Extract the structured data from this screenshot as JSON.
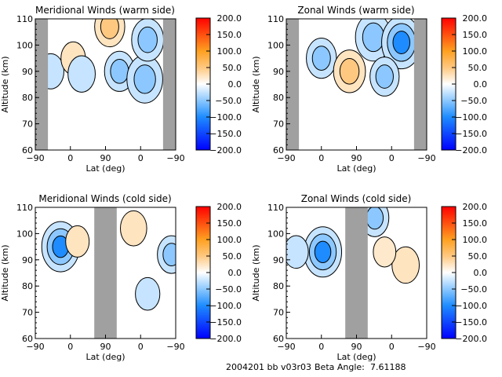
{
  "footer": {
    "run_id": "2004201 bb v03r03",
    "beta_angle_label": "Beta Angle:",
    "beta_angle_value": "7.61188"
  },
  "colorbar": {
    "ticks": [
      "200.0",
      "150.0",
      "100.0",
      "50.0",
      "0.0",
      "-50.0",
      "-100.0",
      "-150.0",
      "-200.0"
    ],
    "range": [
      -200,
      200
    ],
    "stops": [
      {
        "value": -200,
        "color": "#0000ff"
      },
      {
        "value": -100,
        "color": "#1e8cff"
      },
      {
        "value": -50,
        "color": "#8cc8ff"
      },
      {
        "value": 0,
        "color": "#ffffff"
      },
      {
        "value": 50,
        "color": "#ffc880"
      },
      {
        "value": 100,
        "color": "#ffa020"
      },
      {
        "value": 200,
        "color": "#ff0000"
      }
    ]
  },
  "chart_data": [
    {
      "type": "heatmap",
      "title": "Meridional Winds (warm side)",
      "xlabel": "Lat (deg)",
      "ylabel": "Altitude (km)",
      "ylim": [
        60,
        110
      ],
      "xtick_labels": [
        "-90",
        "0",
        "90",
        "0",
        "-90"
      ],
      "ytick_labels": [
        "60",
        "70",
        "80",
        "90",
        "100",
        "110"
      ],
      "gray_bands_lat_index": [
        [
          0,
          0.09
        ],
        [
          0.91,
          1
        ]
      ],
      "contour_levels": [
        -200,
        -150,
        -100,
        -50,
        -25,
        0,
        25,
        50,
        100,
        150,
        200
      ],
      "features": [
        {
          "x": 0.11,
          "y": 90,
          "value": -40
        },
        {
          "x": 0.27,
          "y": 95,
          "value": 30
        },
        {
          "x": 0.33,
          "y": 89,
          "value": -45
        },
        {
          "x": 0.53,
          "y": 107,
          "value": 60
        },
        {
          "x": 0.6,
          "y": 90,
          "value": -60
        },
        {
          "x": 0.78,
          "y": 87,
          "value": -90
        },
        {
          "x": 0.8,
          "y": 102,
          "value": -70
        }
      ]
    },
    {
      "type": "heatmap",
      "title": "Zonal Winds (warm side)",
      "xlabel": "Lat (deg)",
      "ylabel": "Altitude (km)",
      "ylim": [
        60,
        110
      ],
      "xtick_labels": [
        "-90",
        "0",
        "90",
        "0",
        "-90"
      ],
      "ytick_labels": [
        "60",
        "70",
        "80",
        "90",
        "100",
        "110"
      ],
      "gray_bands_lat_index": [
        [
          0,
          0.09
        ],
        [
          0.91,
          1
        ]
      ],
      "contour_levels": [
        -200,
        -150,
        -100,
        -50,
        -25,
        0,
        25,
        50,
        100,
        150,
        200
      ],
      "features": [
        {
          "x": 0.25,
          "y": 95,
          "value": -60
        },
        {
          "x": 0.45,
          "y": 90,
          "value": 70
        },
        {
          "x": 0.62,
          "y": 103,
          "value": -90
        },
        {
          "x": 0.82,
          "y": 101,
          "value": -110
        },
        {
          "x": 0.7,
          "y": 88,
          "value": -55
        }
      ]
    },
    {
      "type": "heatmap",
      "title": "Meridional Winds (cold side)",
      "xlabel": "Lat (deg)",
      "ylabel": "Altitude (km)",
      "ylim": [
        60,
        110
      ],
      "xtick_labels": [
        "-90",
        "0",
        "90",
        "0",
        "-90"
      ],
      "ytick_labels": [
        "60",
        "70",
        "80",
        "90",
        "100",
        "110"
      ],
      "gray_bands_lat_index": [
        [
          0.42,
          0.58
        ]
      ],
      "contour_levels": [
        -200,
        -150,
        -100,
        -50,
        -25,
        0,
        25,
        50,
        100,
        150,
        200
      ],
      "features": [
        {
          "x": 0.18,
          "y": 95,
          "value": -100
        },
        {
          "x": 0.3,
          "y": 97,
          "value": 25
        },
        {
          "x": 0.7,
          "y": 102,
          "value": 40
        },
        {
          "x": 0.8,
          "y": 77,
          "value": -30
        },
        {
          "x": 0.97,
          "y": 92,
          "value": -50
        }
      ]
    },
    {
      "type": "heatmap",
      "title": "Zonal Winds (cold side)",
      "xlabel": "Lat (deg)",
      "ylabel": "Altitude (km)",
      "ylim": [
        60,
        110
      ],
      "xtick_labels": [
        "-90",
        "0",
        "90",
        "0",
        "-90"
      ],
      "ytick_labels": [
        "60",
        "70",
        "80",
        "90",
        "100",
        "110"
      ],
      "gray_bands_lat_index": [
        [
          0.42,
          0.58
        ]
      ],
      "contour_levels": [
        -200,
        -150,
        -100,
        -50,
        -25,
        0,
        25,
        50,
        100,
        150,
        200
      ],
      "features": [
        {
          "x": 0.26,
          "y": 93,
          "value": -100
        },
        {
          "x": 0.07,
          "y": 93,
          "value": -30
        },
        {
          "x": 0.63,
          "y": 106,
          "value": -50
        },
        {
          "x": 0.85,
          "y": 88,
          "value": 45
        },
        {
          "x": 0.7,
          "y": 93,
          "value": 20
        }
      ]
    }
  ]
}
